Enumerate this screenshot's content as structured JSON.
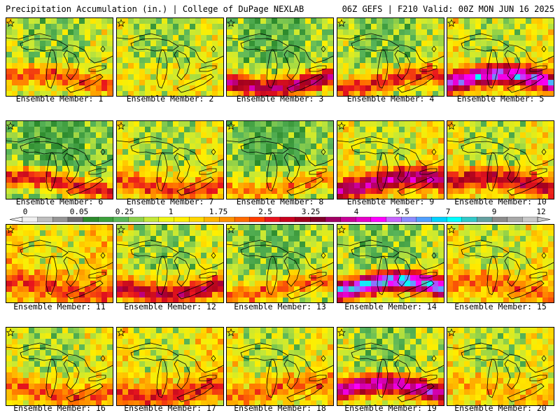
{
  "header": {
    "title_left": "Precipitation Accumulation (in.) | College of DuPage NEXLAB",
    "title_right": "06Z GEFS | F210 Valid: 00Z MON JUN 16 2025"
  },
  "label_prefix": "Ensemble Member: ",
  "members": [
    {
      "id": "1",
      "label": "Ensemble Member: 1",
      "base": 1.5,
      "band": 3.2
    },
    {
      "id": "2",
      "label": "Ensemble Member: 2",
      "base": 1.6,
      "band": 1.8
    },
    {
      "id": "3",
      "label": "Ensemble Member: 3",
      "base": 1.2,
      "band": 4.8
    },
    {
      "id": "4",
      "label": "Ensemble Member: 4",
      "base": 1.4,
      "band": 3.6
    },
    {
      "id": "5",
      "label": "Ensemble Member: 5",
      "base": 1.8,
      "band": 6.2
    },
    {
      "id": "6",
      "label": "Ensemble Member: 6",
      "base": 1.0,
      "band": 3.8
    },
    {
      "id": "7",
      "label": "Ensemble Member: 7",
      "base": 1.7,
      "band": 3.4
    },
    {
      "id": "8",
      "label": "Ensemble Member: 8",
      "base": 1.1,
      "band": 2.8
    },
    {
      "id": "9",
      "label": "Ensemble Member: 9",
      "base": 1.9,
      "band": 5.2
    },
    {
      "id": "10",
      "label": "Ensemble Member: 10",
      "base": 1.8,
      "band": 4.2
    },
    {
      "id": "11",
      "label": "Ensemble Member: 11",
      "base": 2.2,
      "band": 3.4
    },
    {
      "id": "12",
      "label": "Ensemble Member: 12",
      "base": 1.6,
      "band": 4.4
    },
    {
      "id": "13",
      "label": "Ensemble Member: 13",
      "base": 1.3,
      "band": 3.0
    },
    {
      "id": "14",
      "label": "Ensemble Member: 14",
      "base": 1.4,
      "band": 6.8
    },
    {
      "id": "15",
      "label": "Ensemble Member: 15",
      "base": 1.9,
      "band": 3.0
    },
    {
      "id": "16",
      "label": "Ensemble Member: 16",
      "base": 1.7,
      "band": 3.2
    },
    {
      "id": "17",
      "label": "Ensemble Member: 17",
      "base": 2.0,
      "band": 3.6
    },
    {
      "id": "18",
      "label": "Ensemble Member: 18",
      "base": 1.8,
      "band": 3.0
    },
    {
      "id": "19",
      "label": "Ensemble Member: 19",
      "base": 1.5,
      "band": 5.6
    },
    {
      "id": "20",
      "label": "Ensemble Member: 20",
      "base": 1.8,
      "band": 2.4
    }
  ],
  "colorbar": {
    "units": "in.",
    "tick_labels": [
      "0",
      "0.05",
      "0.25",
      "1",
      "1.75",
      "2.5",
      "3.25",
      "4",
      "5.5",
      "7",
      "9",
      "12"
    ],
    "colors": [
      "#f0f0f0",
      "#bebebe",
      "#969696",
      "#6e6e6e",
      "#2d8b2d",
      "#3ca03c",
      "#5ab65a",
      "#8fd14b",
      "#c4e838",
      "#eef514",
      "#ffef00",
      "#ffd700",
      "#ffb300",
      "#ff9100",
      "#ff6a00",
      "#ff3c00",
      "#e8141e",
      "#c8001e",
      "#a0001e",
      "#800028",
      "#a00064",
      "#c80096",
      "#e600c8",
      "#ff00ff",
      "#c864ff",
      "#8c8cff",
      "#50a0ff",
      "#00d2ff",
      "#00ffff",
      "#32c8c8",
      "#64a0a0",
      "#8c8c8c",
      "#a8a8a8",
      "#c8c8c8"
    ]
  }
}
